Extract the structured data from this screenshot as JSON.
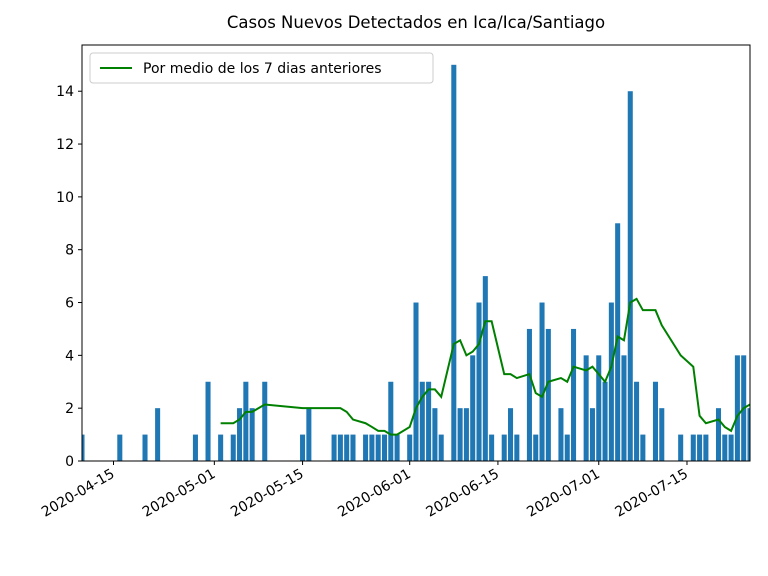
{
  "chart_data": {
    "type": "bar",
    "title": "Casos Nuevos Detectados en Ica/Ica/Santiago",
    "x": [
      "2020-04-10",
      "2020-04-16",
      "2020-04-20",
      "2020-04-22",
      "2020-04-28",
      "2020-04-30",
      "2020-05-02",
      "2020-05-04",
      "2020-05-05",
      "2020-05-06",
      "2020-05-07",
      "2020-05-09",
      "2020-05-15",
      "2020-05-16",
      "2020-05-20",
      "2020-05-21",
      "2020-05-22",
      "2020-05-23",
      "2020-05-25",
      "2020-05-26",
      "2020-05-27",
      "2020-05-28",
      "2020-05-29",
      "2020-05-30",
      "2020-06-01",
      "2020-06-02",
      "2020-06-03",
      "2020-06-04",
      "2020-06-05",
      "2020-06-06",
      "2020-06-08",
      "2020-06-09",
      "2020-06-10",
      "2020-06-11",
      "2020-06-12",
      "2020-06-13",
      "2020-06-14",
      "2020-06-16",
      "2020-06-17",
      "2020-06-18",
      "2020-06-20",
      "2020-06-21",
      "2020-06-22",
      "2020-06-23",
      "2020-06-25",
      "2020-06-26",
      "2020-06-27",
      "2020-06-29",
      "2020-06-30",
      "2020-07-01",
      "2020-07-02",
      "2020-07-03",
      "2020-07-04",
      "2020-07-05",
      "2020-07-06",
      "2020-07-07",
      "2020-07-08",
      "2020-07-10",
      "2020-07-11",
      "2020-07-14",
      "2020-07-16",
      "2020-07-17",
      "2020-07-18",
      "2020-07-20",
      "2020-07-21",
      "2020-07-22",
      "2020-07-23",
      "2020-07-24",
      "2020-07-25"
    ],
    "values": [
      1,
      1,
      1,
      2,
      1,
      3,
      1,
      1,
      2,
      3,
      2,
      3,
      1,
      2,
      1,
      1,
      1,
      1,
      1,
      1,
      1,
      1,
      3,
      1,
      1,
      6,
      3,
      3,
      2,
      1,
      15,
      2,
      2,
      4,
      6,
      7,
      1,
      1,
      2,
      1,
      5,
      1,
      6,
      5,
      2,
      1,
      5,
      4,
      2,
      4,
      3,
      6,
      9,
      4,
      14,
      3,
      1,
      3,
      2,
      1,
      1,
      1,
      1,
      2,
      1,
      1,
      4,
      4,
      2
    ],
    "color": "#1f77b4",
    "line": {
      "type": "line",
      "name": "Por medio de los 7 dias anteriores",
      "color": "#008000",
      "x": [
        "2020-05-02",
        "2020-05-04",
        "2020-05-05",
        "2020-05-06",
        "2020-05-07",
        "2020-05-09",
        "2020-05-15",
        "2020-05-16",
        "2020-05-20",
        "2020-05-21",
        "2020-05-22",
        "2020-05-23",
        "2020-05-25",
        "2020-05-26",
        "2020-05-27",
        "2020-05-28",
        "2020-05-29",
        "2020-05-30",
        "2020-06-01",
        "2020-06-02",
        "2020-06-03",
        "2020-06-04",
        "2020-06-05",
        "2020-06-06",
        "2020-06-08",
        "2020-06-09",
        "2020-06-10",
        "2020-06-11",
        "2020-06-12",
        "2020-06-13",
        "2020-06-14",
        "2020-06-16",
        "2020-06-17",
        "2020-06-18",
        "2020-06-20",
        "2020-06-21",
        "2020-06-22",
        "2020-06-23",
        "2020-06-25",
        "2020-06-26",
        "2020-06-27",
        "2020-06-29",
        "2020-06-30",
        "2020-07-01",
        "2020-07-02",
        "2020-07-03",
        "2020-07-04",
        "2020-07-05",
        "2020-07-06",
        "2020-07-07",
        "2020-07-08",
        "2020-07-10",
        "2020-07-11",
        "2020-07-14",
        "2020-07-16",
        "2020-07-17",
        "2020-07-18",
        "2020-07-20",
        "2020-07-21",
        "2020-07-22",
        "2020-07-23",
        "2020-07-24",
        "2020-07-25"
      ],
      "values": [
        1.43,
        1.43,
        1.57,
        1.86,
        1.86,
        2.14,
        2.0,
        2.0,
        2.0,
        2.0,
        1.86,
        1.57,
        1.43,
        1.29,
        1.14,
        1.14,
        1.0,
        1.0,
        1.29,
        2.0,
        2.43,
        2.71,
        2.71,
        2.43,
        4.43,
        4.57,
        4.0,
        4.14,
        4.43,
        5.29,
        5.29,
        3.29,
        3.29,
        3.14,
        3.29,
        2.57,
        2.43,
        3.0,
        3.14,
        3.0,
        3.57,
        3.43,
        3.57,
        3.29,
        3.0,
        3.57,
        4.71,
        4.57,
        6.0,
        6.14,
        5.71,
        5.71,
        5.14,
        4.0,
        3.57,
        1.71,
        1.43,
        1.57,
        1.29,
        1.14,
        1.71,
        2.0,
        2.14
      ]
    },
    "xlim": [
      "2020-04-10",
      "2020-07-25"
    ],
    "xticks": [
      "2020-04-15",
      "2020-05-01",
      "2020-05-15",
      "2020-06-01",
      "2020-06-15",
      "2020-07-01",
      "2020-07-15"
    ],
    "ylim": [
      0,
      15.75
    ],
    "yticks": [
      0,
      2,
      4,
      6,
      8,
      10,
      12,
      14
    ],
    "legend": "upper left"
  }
}
